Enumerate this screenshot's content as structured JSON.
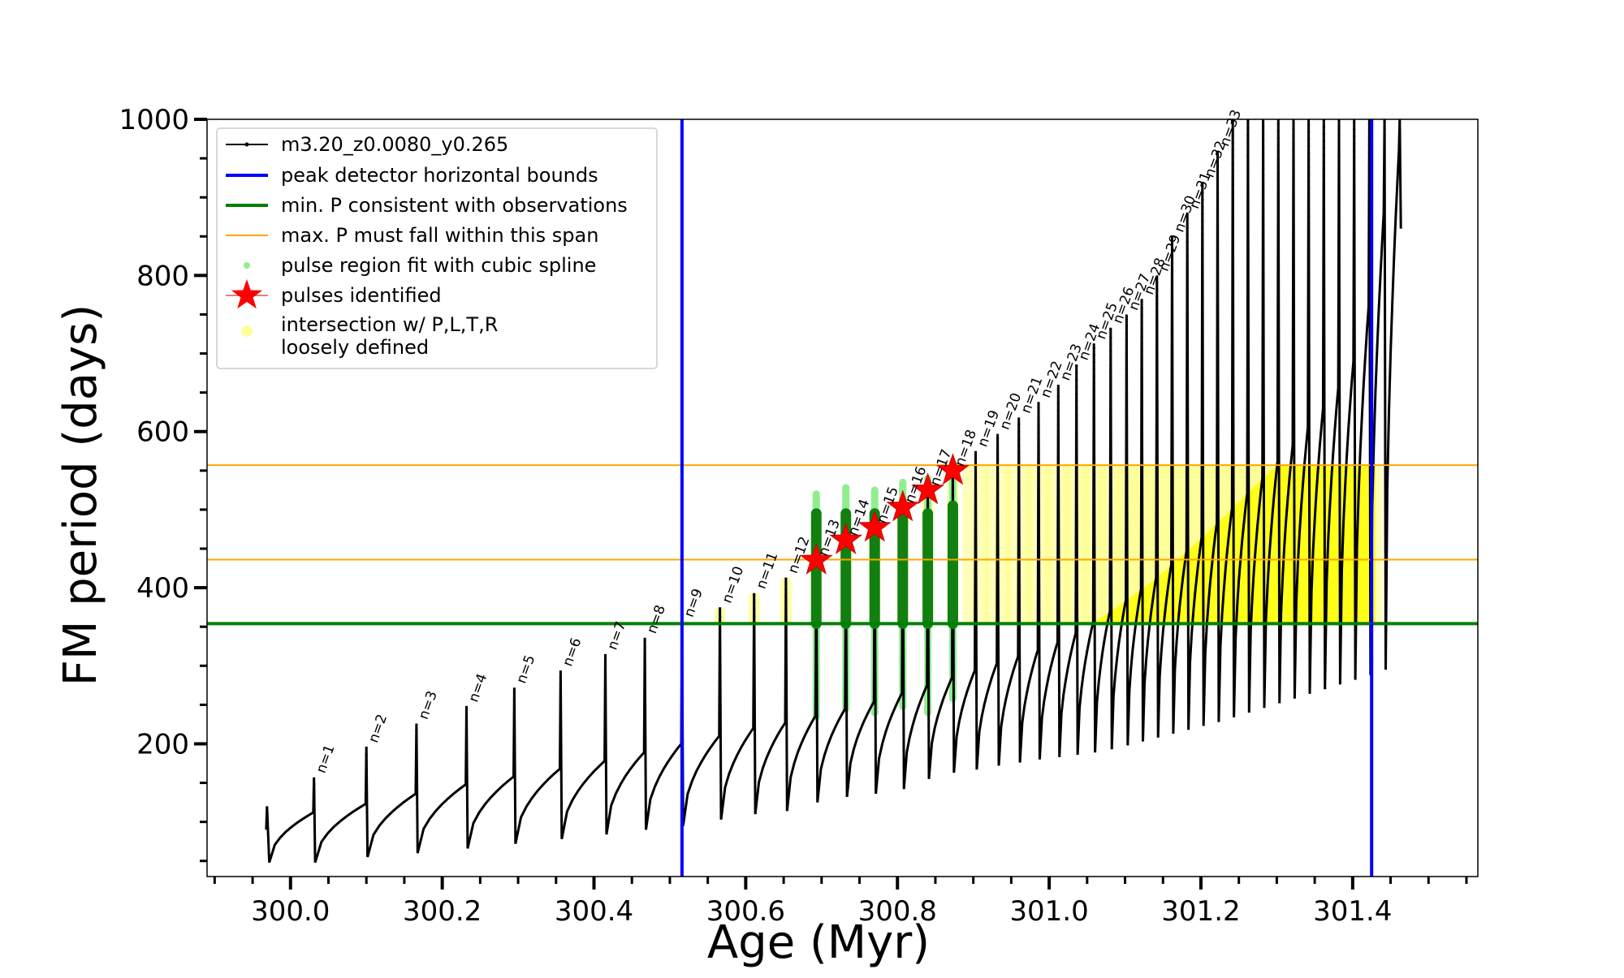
{
  "chart_data": {
    "type": "scatter",
    "xlabel": "Age (Myr)",
    "ylabel": "FM period (days)",
    "xlim": [
      299.89,
      301.565
    ],
    "ylim": [
      30,
      1000
    ],
    "x_ticks": [
      "300.0",
      "300.2",
      "300.4",
      "300.6",
      "300.8",
      "301.0",
      "301.2",
      "301.4"
    ],
    "x_tick_values": [
      300.0,
      300.2,
      300.4,
      300.6,
      300.8,
      301.0,
      301.2,
      301.4
    ],
    "y_ticks": [
      "200",
      "400",
      "600",
      "800",
      "1000"
    ],
    "y_tick_values": [
      200,
      400,
      600,
      800,
      1000
    ],
    "legend": {
      "placement": "upper-left",
      "entries": [
        {
          "label": "m3.20_z0.0080_y0.265",
          "color": "#000000",
          "marker": "line-dot"
        },
        {
          "label": "peak detector horizontal bounds",
          "color": "#0000ff",
          "marker": "line"
        },
        {
          "label": "min. P consistent with observations",
          "color": "#008000",
          "marker": "line"
        },
        {
          "label": "max. P must fall within this span",
          "color": "#ffa500",
          "marker": "line-thin"
        },
        {
          "label": "pulse region fit with cubic spline",
          "color": "#90ee90",
          "marker": "dot"
        },
        {
          "label": "pulses identified",
          "color": "#ff0000",
          "marker": "star"
        },
        {
          "label": "intersection w/ P,L,T,R",
          "label2": "loosely defined",
          "color": "#ffff99",
          "marker": "circle"
        }
      ]
    },
    "vertical_lines": [
      300.516,
      301.425
    ],
    "min_period_line": 354,
    "max_period_span": [
      436,
      557
    ],
    "base_curve": {
      "start_age": 299.97,
      "start_period": 90,
      "points": [
        [
          299.972,
          45
        ],
        [
          300.0,
          90
        ],
        [
          300.03,
          112
        ],
        [
          300.04,
          120
        ],
        [
          300.1,
          128
        ],
        [
          300.2,
          145
        ],
        [
          300.3,
          160
        ],
        [
          300.4,
          178
        ],
        [
          300.5,
          197
        ],
        [
          300.6,
          220
        ],
        [
          300.7,
          245
        ],
        [
          300.8,
          272
        ],
        [
          300.9,
          298
        ],
        [
          301.0,
          330
        ],
        [
          301.05,
          355
        ],
        [
          301.1,
          400
        ],
        [
          301.2,
          480
        ],
        [
          301.3,
          580
        ],
        [
          301.35,
          650
        ],
        [
          301.4,
          760
        ],
        [
          301.45,
          1000
        ]
      ]
    },
    "pulses": [
      {
        "n": "n=1",
        "age": 300.031,
        "peak": 157,
        "pre_min": 112,
        "trough": 48
      },
      {
        "n": "n=2",
        "age": 300.1,
        "peak": 196,
        "pre_min": 123,
        "trough": 55
      },
      {
        "n": "n=3",
        "age": 300.166,
        "peak": 226,
        "pre_min": 136,
        "trough": 60
      },
      {
        "n": "n=4",
        "age": 300.232,
        "peak": 248,
        "pre_min": 148,
        "trough": 66
      },
      {
        "n": "n=5",
        "age": 300.295,
        "peak": 272,
        "pre_min": 158,
        "trough": 72
      },
      {
        "n": "n=6",
        "age": 300.356,
        "peak": 294,
        "pre_min": 168,
        "trough": 78
      },
      {
        "n": "n=7",
        "age": 300.415,
        "peak": 315,
        "pre_min": 178,
        "trough": 84
      },
      {
        "n": "n=8",
        "age": 300.467,
        "peak": 336,
        "pre_min": 189,
        "trough": 90
      },
      {
        "n": "n=9",
        "age": 300.516,
        "peak": 357,
        "pre_min": 200,
        "trough": 95
      },
      {
        "n": "n=10",
        "age": 300.566,
        "peak": 375,
        "pre_min": 210,
        "trough": 103
      },
      {
        "n": "n=11",
        "age": 300.611,
        "peak": 393,
        "pre_min": 220,
        "trough": 110
      },
      {
        "n": "n=12",
        "age": 300.653,
        "peak": 413,
        "pre_min": 227,
        "trough": 114
      },
      {
        "n": "n=13",
        "age": 300.693,
        "peak": 435,
        "pre_min": 236,
        "trough": 125
      },
      {
        "n": "n=14",
        "age": 300.732,
        "peak": 461,
        "pre_min": 245,
        "trough": 132
      },
      {
        "n": "n=15",
        "age": 300.77,
        "peak": 477,
        "pre_min": 254,
        "trough": 136
      },
      {
        "n": "n=16",
        "age": 300.807,
        "peak": 503,
        "pre_min": 265,
        "trough": 142
      },
      {
        "n": "n=17",
        "age": 300.84,
        "peak": 525,
        "pre_min": 275,
        "trough": 155
      },
      {
        "n": "n=18",
        "age": 300.873,
        "peak": 550,
        "pre_min": 285,
        "trough": 163
      },
      {
        "n": "n=19",
        "age": 300.903,
        "peak": 575,
        "pre_min": 294,
        "trough": 167
      },
      {
        "n": "n=20",
        "age": 300.932,
        "peak": 597,
        "pre_min": 303,
        "trough": 172
      },
      {
        "n": "n=21",
        "age": 300.96,
        "peak": 618,
        "pre_min": 312,
        "trough": 176
      },
      {
        "n": "n=22",
        "age": 300.986,
        "peak": 638,
        "pre_min": 320,
        "trough": 180
      },
      {
        "n": "n=23",
        "age": 301.012,
        "peak": 660,
        "pre_min": 330,
        "trough": 183
      },
      {
        "n": "n=24",
        "age": 301.036,
        "peak": 686,
        "pre_min": 342,
        "trough": 186
      },
      {
        "n": "n=25",
        "age": 301.059,
        "peak": 713,
        "pre_min": 356,
        "trough": 189
      },
      {
        "n": "n=26",
        "age": 301.081,
        "peak": 733,
        "pre_min": 370,
        "trough": 193
      },
      {
        "n": "n=27",
        "age": 301.102,
        "peak": 750,
        "pre_min": 384,
        "trough": 198
      },
      {
        "n": "n=28",
        "age": 301.122,
        "peak": 770,
        "pre_min": 398,
        "trough": 203
      },
      {
        "n": "n=29",
        "age": 301.142,
        "peak": 800,
        "pre_min": 413,
        "trough": 208
      },
      {
        "n": "n=30",
        "age": 301.162,
        "peak": 850,
        "pre_min": 430,
        "trough": 213
      },
      {
        "n": "n=31",
        "age": 301.182,
        "peak": 880,
        "pre_min": 447,
        "trough": 218
      },
      {
        "n": "n=32",
        "age": 301.202,
        "peak": 920,
        "pre_min": 465,
        "trough": 223
      },
      {
        "n": "n=33",
        "age": 301.222,
        "peak": 960,
        "pre_min": 483,
        "trough": 228
      },
      {
        "n": "",
        "age": 301.242,
        "peak": 1000,
        "pre_min": 502,
        "trough": 234
      },
      {
        "n": "",
        "age": 301.262,
        "peak": 1000,
        "pre_min": 521,
        "trough": 240
      },
      {
        "n": "",
        "age": 301.282,
        "peak": 1000,
        "pre_min": 541,
        "trough": 246
      },
      {
        "n": "",
        "age": 301.302,
        "peak": 1000,
        "pre_min": 562,
        "trough": 252
      },
      {
        "n": "",
        "age": 301.322,
        "peak": 1000,
        "pre_min": 583,
        "trough": 258
      },
      {
        "n": "",
        "age": 301.342,
        "peak": 1000,
        "pre_min": 606,
        "trough": 264
      },
      {
        "n": "",
        "age": 301.362,
        "peak": 1000,
        "pre_min": 630,
        "trough": 270
      },
      {
        "n": "",
        "age": 301.382,
        "peak": 1000,
        "pre_min": 656,
        "trough": 276
      },
      {
        "n": "",
        "age": 301.402,
        "peak": 1000,
        "pre_min": 690,
        "trough": 282
      },
      {
        "n": "",
        "age": 301.422,
        "peak": 1000,
        "pre_min": 760,
        "trough": 288
      },
      {
        "n": "",
        "age": 301.442,
        "peak": 1000,
        "pre_min": 880,
        "trough": 295
      },
      {
        "n": "",
        "age": 301.462,
        "peak": 1000,
        "pre_min": 960,
        "trough": 860
      }
    ],
    "identified_pulses": [
      {
        "n": "n=13",
        "age": 300.693,
        "period": 435
      },
      {
        "n": "n=14",
        "age": 300.732,
        "period": 461
      },
      {
        "n": "n=15",
        "age": 300.77,
        "period": 477
      },
      {
        "n": "n=16",
        "age": 300.807,
        "period": 503
      },
      {
        "n": "n=17",
        "age": 300.84,
        "period": 525
      },
      {
        "n": "n=18",
        "age": 300.873,
        "period": 550
      }
    ],
    "spline_fit_regions": [
      {
        "age": 300.693,
        "low": 235,
        "high": 520
      },
      {
        "age": 300.732,
        "low": 245,
        "high": 528
      },
      {
        "age": 300.77,
        "low": 240,
        "high": 525
      },
      {
        "age": 300.807,
        "low": 248,
        "high": 535
      },
      {
        "age": 300.84,
        "low": 240,
        "high": 540
      },
      {
        "age": 300.873,
        "low": 258,
        "high": 560
      }
    ],
    "green_dense_regions": [
      {
        "age": 300.693,
        "low": 354,
        "high": 495
      },
      {
        "age": 300.732,
        "low": 354,
        "high": 495
      },
      {
        "age": 300.77,
        "low": 354,
        "high": 495
      },
      {
        "age": 300.807,
        "low": 354,
        "high": 500
      },
      {
        "age": 300.84,
        "low": 354,
        "high": 495
      },
      {
        "age": 300.873,
        "low": 354,
        "high": 505
      }
    ]
  }
}
